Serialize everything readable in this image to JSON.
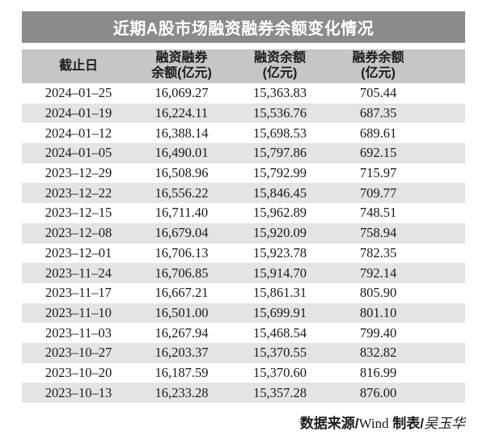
{
  "title": "近期A股市场融资融券余额变化情况",
  "colors": {
    "title_bar_bg": "#8b8b8b",
    "title_text": "#ffffff",
    "header_bg": "#c6c6c6",
    "row_alt_bg": "#e4e4e4",
    "text_color": "#1a1a1a"
  },
  "table": {
    "columns": [
      {
        "line1": "截止日",
        "line2": ""
      },
      {
        "line1": "融资融券",
        "line2": "余额(亿元)"
      },
      {
        "line1": "融资余额",
        "line2": "(亿元)"
      },
      {
        "line1": "融券余额",
        "line2": "(亿元)"
      }
    ],
    "rows": [
      [
        "2024–01–25",
        "16,069.27",
        "15,363.83",
        "705.44"
      ],
      [
        "2024–01–19",
        "16,224.11",
        "15,536.76",
        "687.35"
      ],
      [
        "2024–01–12",
        "16,388.14",
        "15,698.53",
        "689.61"
      ],
      [
        "2024–01–05",
        "16,490.01",
        "15,797.86",
        "692.15"
      ],
      [
        "2023–12–29",
        "16,508.96",
        "15,792.99",
        "715.97"
      ],
      [
        "2023–12–22",
        "16,556.22",
        "15,846.45",
        "709.77"
      ],
      [
        "2023–12–15",
        "16,711.40",
        "15,962.89",
        "748.51"
      ],
      [
        "2023–12–08",
        "16,679.04",
        "15,920.09",
        "758.94"
      ],
      [
        "2023–12–01",
        "16,706.13",
        "15,923.78",
        "782.35"
      ],
      [
        "2023–11–24",
        "16,706.85",
        "15,914.70",
        "792.14"
      ],
      [
        "2023–11–17",
        "16,667.21",
        "15,861.31",
        "805.90"
      ],
      [
        "2023–11–10",
        "16,501.00",
        "15,699.91",
        "801.10"
      ],
      [
        "2023–11–03",
        "16,267.94",
        "15,468.54",
        "799.40"
      ],
      [
        "2023–10–27",
        "16,203.37",
        "15,370.55",
        "832.82"
      ],
      [
        "2023–10–20",
        "16,187.59",
        "15,370.60",
        "816.99"
      ],
      [
        "2023–10–13",
        "16,233.28",
        "15,357.28",
        "876.00"
      ]
    ]
  },
  "footer": {
    "source_label": "数据来源/",
    "source_value": "Wind",
    "maker_label": " 制表/",
    "maker_value": "吴玉华"
  },
  "chart_data": {
    "type": "table",
    "title": "近期A股市场融资融券余额变化情况",
    "columns": [
      "截止日",
      "融资融券余额(亿元)",
      "融资余额(亿元)",
      "融券余额(亿元)"
    ],
    "rows": [
      [
        "2024-01-25",
        16069.27,
        15363.83,
        705.44
      ],
      [
        "2024-01-19",
        16224.11,
        15536.76,
        687.35
      ],
      [
        "2024-01-12",
        16388.14,
        15698.53,
        689.61
      ],
      [
        "2024-01-05",
        16490.01,
        15797.86,
        692.15
      ],
      [
        "2023-12-29",
        16508.96,
        15792.99,
        715.97
      ],
      [
        "2023-12-22",
        16556.22,
        15846.45,
        709.77
      ],
      [
        "2023-12-15",
        16711.4,
        15962.89,
        748.51
      ],
      [
        "2023-12-08",
        16679.04,
        15920.09,
        758.94
      ],
      [
        "2023-12-01",
        16706.13,
        15923.78,
        782.35
      ],
      [
        "2023-11-24",
        16706.85,
        15914.7,
        792.14
      ],
      [
        "2023-11-17",
        16667.21,
        15861.31,
        805.9
      ],
      [
        "2023-11-10",
        16501.0,
        15699.91,
        801.1
      ],
      [
        "2023-11-03",
        16267.94,
        15468.54,
        799.4
      ],
      [
        "2023-10-27",
        16203.37,
        15370.55,
        832.82
      ],
      [
        "2023-10-20",
        16187.59,
        15370.6,
        816.99
      ],
      [
        "2023-10-13",
        16233.28,
        15357.28,
        876.0
      ]
    ],
    "source": "Wind",
    "credit": "吴玉华"
  }
}
